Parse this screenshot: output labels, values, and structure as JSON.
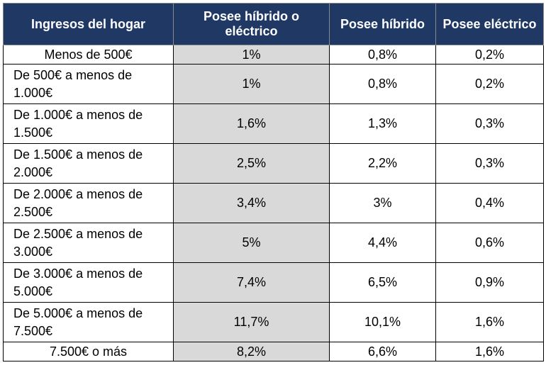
{
  "chart_data": {
    "type": "table",
    "columns": [
      "Ingresos del hogar",
      "Posee híbrido o eléctrico",
      "Posee híbrido",
      "Posee eléctrico"
    ],
    "rows": [
      {
        "label": "Menos de 500€",
        "hybrid_or_electric": "1%",
        "hybrid": "0,8%",
        "electric": "0,2%"
      },
      {
        "label": "De 500€ a menos de 1.000€",
        "hybrid_or_electric": "1%",
        "hybrid": "0,8%",
        "electric": "0,2%"
      },
      {
        "label": "De 1.000€ a menos de 1.500€",
        "hybrid_or_electric": "1,6%",
        "hybrid": "1,3%",
        "electric": "0,3%"
      },
      {
        "label": "De 1.500€ a menos de 2.000€",
        "hybrid_or_electric": "2,5%",
        "hybrid": "2,2%",
        "electric": "0,3%"
      },
      {
        "label": "De 2.000€ a menos de 2.500€",
        "hybrid_or_electric": "3,4%",
        "hybrid": "3%",
        "electric": "0,4%"
      },
      {
        "label": "De 2.500€ a menos de 3.000€",
        "hybrid_or_electric": "5%",
        "hybrid": "4,4%",
        "electric": "0,6%"
      },
      {
        "label": "De 3.000€ a menos de 5.000€",
        "hybrid_or_electric": "7,4%",
        "hybrid": "6,5%",
        "electric": "0,9%"
      },
      {
        "label": "De 5.000€ a menos de 7.500€",
        "hybrid_or_electric": "11,7%",
        "hybrid": "10,1%",
        "electric": "1,6%"
      },
      {
        "label": "7.500€ o más",
        "hybrid_or_electric": "8,2%",
        "hybrid": "6,6%",
        "electric": "1,6%"
      }
    ]
  },
  "colors": {
    "header_bg": "#1f3864",
    "header_text": "#ffffff",
    "highlight_column": "#d9d9d9"
  }
}
